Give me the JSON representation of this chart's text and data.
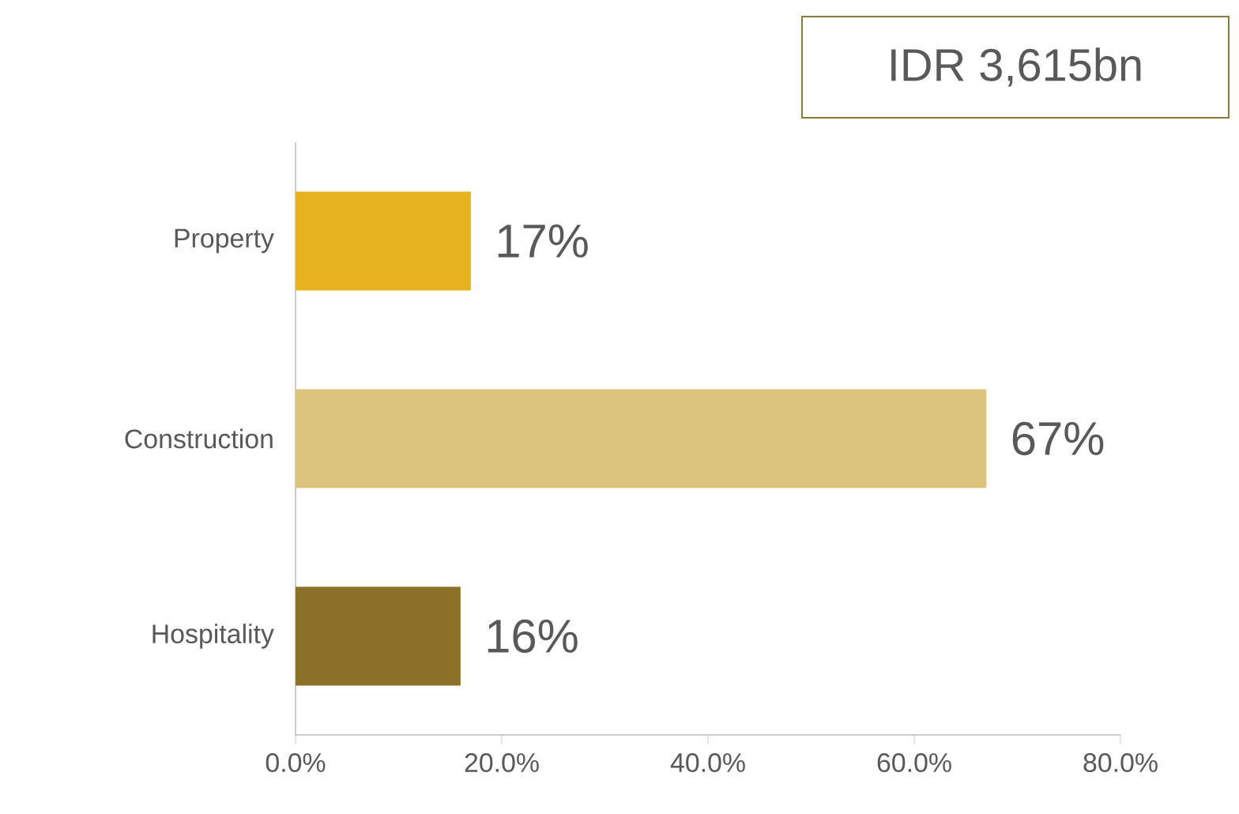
{
  "chart_data": {
    "type": "bar",
    "orientation": "horizontal",
    "categories": [
      "Property",
      "Construction",
      "Hospitality"
    ],
    "values": [
      17,
      67,
      16
    ],
    "colors": [
      "#e6b31e",
      "#dcc47e",
      "#8b7127"
    ],
    "value_labels": [
      "17%",
      "67%",
      "16%"
    ],
    "xlim": [
      0,
      80
    ],
    "xticks": [
      {
        "value": 0,
        "label": "0.0%"
      },
      {
        "value": 20,
        "label": "20.0%"
      },
      {
        "value": 40,
        "label": "40.0%"
      },
      {
        "value": 60,
        "label": "60.0%"
      },
      {
        "value": 80,
        "label": "80.0%"
      }
    ],
    "annotations": [
      "IDR 3,615bn"
    ]
  }
}
